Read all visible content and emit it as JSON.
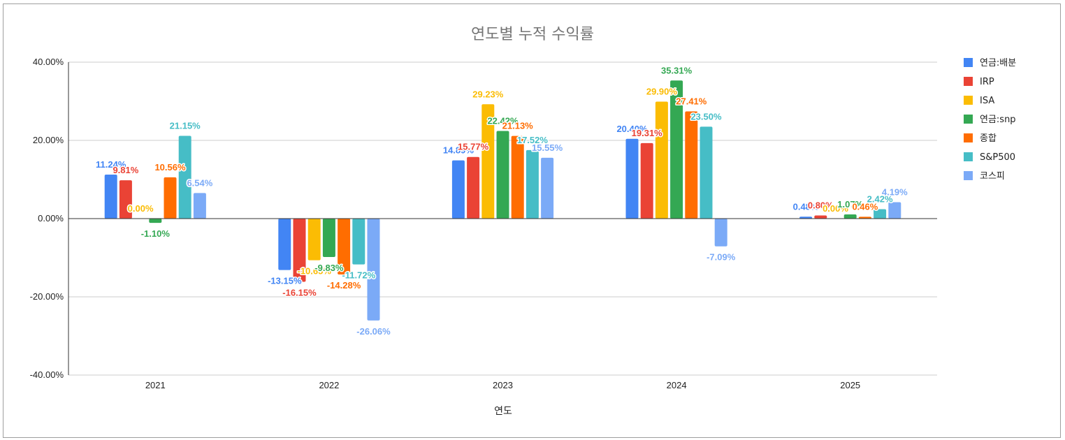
{
  "chart_data": {
    "type": "bar",
    "title": "연도별 누적 수익률",
    "xlabel": "연도",
    "ylabel": "",
    "ylim": [
      -40,
      40
    ],
    "yticks": [
      "40.00%",
      "20.00%",
      "0.00%",
      "-20.00%",
      "-40.00%"
    ],
    "ytick_values": [
      40,
      20,
      0,
      -20,
      -40
    ],
    "categories": [
      "2021",
      "2022",
      "2023",
      "2024",
      "2025"
    ],
    "legend_position": "right",
    "series": [
      {
        "name": "연금:배분",
        "color": "#4285f4",
        "values": [
          11.24,
          -13.15,
          14.89,
          20.4,
          0.48
        ],
        "labels": [
          "11.24%",
          "-13.15%",
          "14.89%",
          "20.40%",
          "0.48%"
        ]
      },
      {
        "name": "IRP",
        "color": "#ea4335",
        "values": [
          9.81,
          -16.15,
          15.77,
          19.31,
          0.8
        ],
        "labels": [
          "9.81%",
          "-16.15%",
          "15.77%",
          "19.31%",
          "0.80%"
        ]
      },
      {
        "name": "ISA",
        "color": "#fbbc04",
        "values": [
          0.0,
          -10.65,
          29.23,
          29.9,
          0.0
        ],
        "labels": [
          "0.00%",
          "-10.65%",
          "29.23%",
          "29.90%",
          "0.00%"
        ]
      },
      {
        "name": "연금:snp",
        "color": "#34a853",
        "values": [
          -1.1,
          -9.83,
          22.42,
          35.31,
          1.07
        ],
        "labels": [
          "-1.10%",
          "-9.83%",
          "22.42%",
          "35.31%",
          "1.07%"
        ]
      },
      {
        "name": "종합",
        "color": "#ff6d01",
        "values": [
          10.56,
          -14.28,
          21.13,
          27.41,
          0.46
        ],
        "labels": [
          "10.56%",
          "-14.28%",
          "21.13%",
          "27.41%",
          "0.46%"
        ]
      },
      {
        "name": "S&P500",
        "color": "#46bdc6",
        "values": [
          21.15,
          -11.72,
          17.52,
          23.5,
          2.42
        ],
        "labels": [
          "21.15%",
          "-11.72%",
          "17.52%",
          "23.50%",
          "2.42%"
        ]
      },
      {
        "name": "코스피",
        "color": "#7baaf7",
        "values": [
          6.54,
          -26.06,
          15.55,
          -7.09,
          4.19
        ],
        "labels": [
          "6.54%",
          "-26.06%",
          "15.55%",
          "-7.09%",
          "4.19%"
        ]
      }
    ]
  }
}
